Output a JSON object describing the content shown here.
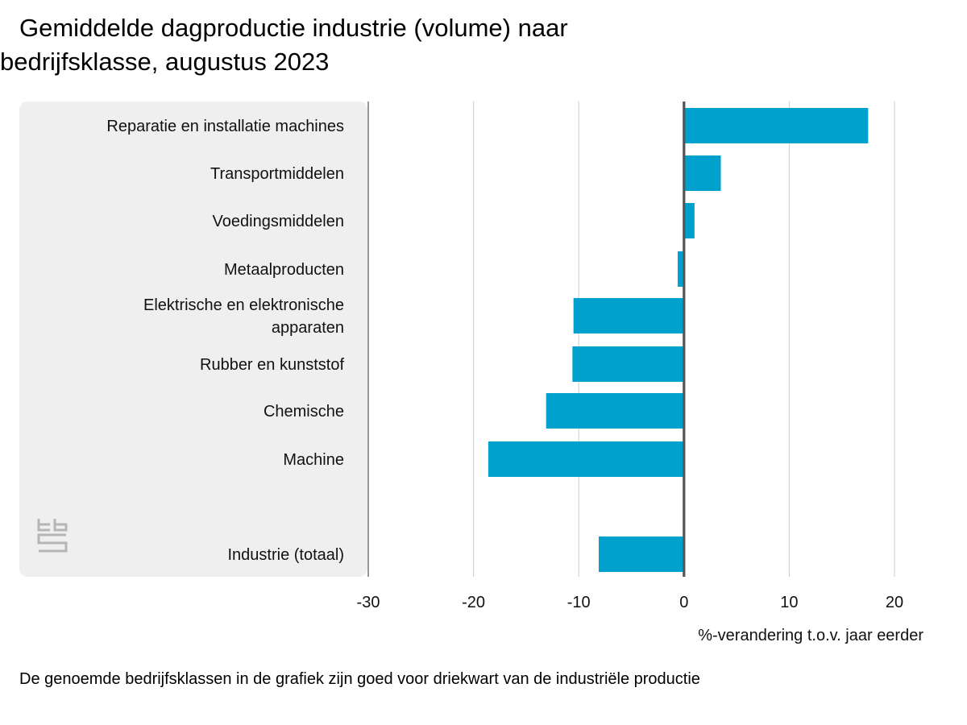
{
  "title_line1": "Gemiddelde dagproductie industrie (volume) naar",
  "title_line2": "bedrijfsklasse, augustus 2023",
  "footnote": "De genoemde bedrijfsklassen in de grafiek zijn goed voor driekwart van de industriële productie",
  "logo_icon": "cbs-logo-icon",
  "colors": {
    "bar": "#00a1cd",
    "panel": "#efefef",
    "grid": "#cccccc",
    "axis": "#555555"
  },
  "chart_data": {
    "type": "bar",
    "orientation": "horizontal",
    "categories": [
      [
        "Reparatie en installatie machines"
      ],
      [
        "Transportmiddelen"
      ],
      [
        "Voedingsmiddelen"
      ],
      [
        "Metaalproducten"
      ],
      [
        "Elektrische en elektronische",
        "apparaten"
      ],
      [
        "Rubber en kunststof"
      ],
      [
        "Chemische"
      ],
      [
        "Machine"
      ],
      [
        "Industrie (totaal)"
      ]
    ],
    "values": [
      17.5,
      3.5,
      1.0,
      -0.6,
      -10.5,
      -10.6,
      -13.1,
      -18.6,
      -8.1
    ],
    "xlabel": "%-verandering t.o.v. jaar eerder",
    "xlim": [
      -30,
      20
    ],
    "xticks": [
      -30,
      -20,
      -10,
      0,
      10,
      20
    ],
    "grid": true
  }
}
